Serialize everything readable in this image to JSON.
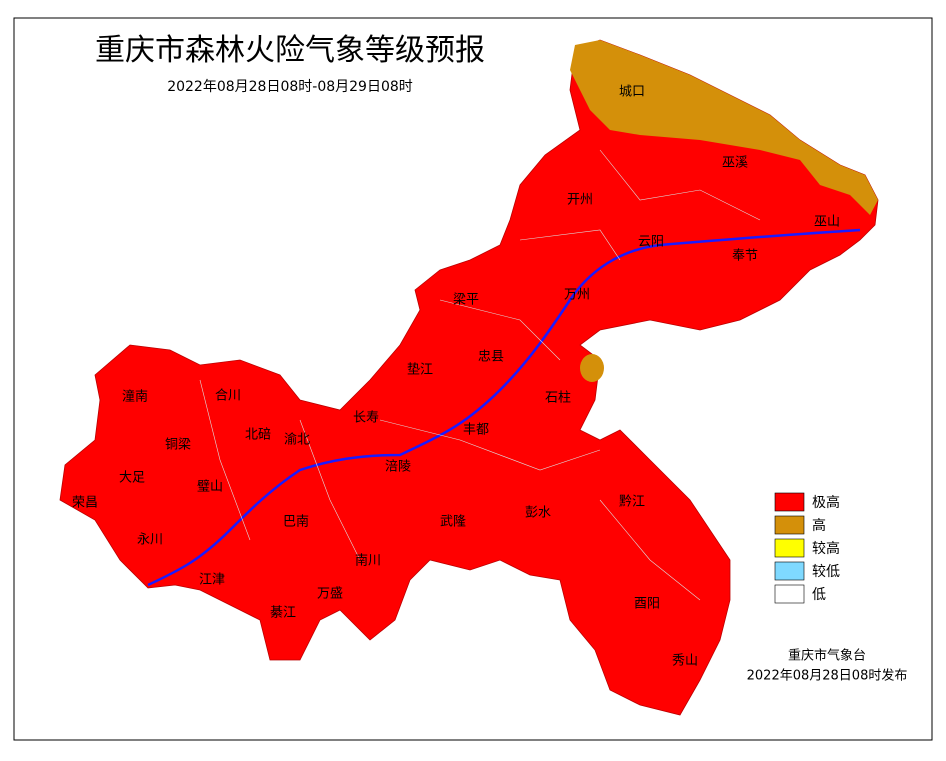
{
  "header": {
    "title": "重庆市森林火险气象等级预报",
    "subtitle": "2022年08月28日08时-08月29日08时"
  },
  "legend": [
    {
      "label": "极高",
      "color": "#ff0000"
    },
    {
      "label": "高",
      "color": "#d4900a"
    },
    {
      "label": "较高",
      "color": "#ffff00"
    },
    {
      "label": "较低",
      "color": "#7fd9ff"
    },
    {
      "label": "低",
      "color": "#ffffff"
    }
  ],
  "places": [
    {
      "label": "城口"
    },
    {
      "label": "巫溪"
    },
    {
      "label": "巫山"
    },
    {
      "label": "开州"
    },
    {
      "label": "云阳"
    },
    {
      "label": "奉节"
    },
    {
      "label": "梁平"
    },
    {
      "label": "万州"
    },
    {
      "label": "垫江"
    },
    {
      "label": "忠县"
    },
    {
      "label": "石柱"
    },
    {
      "label": "长寿"
    },
    {
      "label": "丰都"
    },
    {
      "label": "涪陵"
    },
    {
      "label": "武隆"
    },
    {
      "label": "彭水"
    },
    {
      "label": "黔江"
    },
    {
      "label": "酉阳"
    },
    {
      "label": "秀山"
    },
    {
      "label": "潼南"
    },
    {
      "label": "合川"
    },
    {
      "label": "铜梁"
    },
    {
      "label": "北碚"
    },
    {
      "label": "渝北"
    },
    {
      "label": "大足"
    },
    {
      "label": "璧山"
    },
    {
      "label": "荣昌"
    },
    {
      "label": "永川"
    },
    {
      "label": "巴南"
    },
    {
      "label": "江津"
    },
    {
      "label": "南川"
    },
    {
      "label": "万盛"
    },
    {
      "label": "綦江"
    }
  ],
  "footer": {
    "issuer": "重庆市气象台",
    "issued": "2022年08月28日08时发布"
  }
}
